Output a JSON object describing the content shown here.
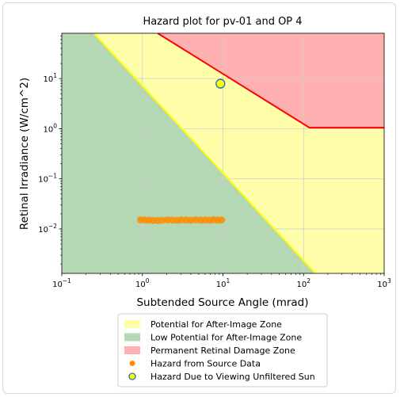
{
  "chart_data": {
    "type": "scatter",
    "title": "Hazard plot for pv-01 and OP 4",
    "xlabel": "Subtended Source Angle (mrad)",
    "ylabel": "Retinal Irradiance (W/cm^2)",
    "xscale": "log",
    "yscale": "log",
    "xlim": [
      0.1,
      1000
    ],
    "ylim": [
      0.0013,
      80
    ],
    "x_ticks": [
      {
        "value": 0.1,
        "base": "10",
        "exp": "−1"
      },
      {
        "value": 1,
        "base": "10",
        "exp": "0"
      },
      {
        "value": 10,
        "base": "10",
        "exp": "1"
      },
      {
        "value": 100,
        "base": "10",
        "exp": "2"
      },
      {
        "value": 1000,
        "base": "10",
        "exp": "3"
      }
    ],
    "y_ticks": [
      {
        "value": 0.01,
        "base": "10",
        "exp": "−2"
      },
      {
        "value": 0.1,
        "base": "10",
        "exp": "−1"
      },
      {
        "value": 1,
        "base": "10",
        "exp": "0"
      },
      {
        "value": 10,
        "base": "10",
        "exp": "1"
      }
    ],
    "grid": true,
    "zones": {
      "after_image_color": "#ffffaa",
      "low_potential_color": "#b3d8b3",
      "permanent_damage_color": "#ffb0b0",
      "low_boundary": {
        "points": [
          [
            0.25,
            80
          ],
          [
            140,
            0.0013
          ]
        ],
        "color": "#ffff00"
      },
      "damage_boundary": {
        "points": [
          [
            1.55,
            80
          ],
          [
            118,
            1.05
          ],
          [
            1000,
            1.05
          ]
        ],
        "color": "#ff0000"
      }
    },
    "series": [
      {
        "name": "Hazard from Source Data",
        "color": "#ff8c00",
        "points": [
          [
            0.95,
            0.0152
          ],
          [
            1.07,
            0.0151
          ],
          [
            1.2,
            0.015
          ],
          [
            1.35,
            0.0148
          ],
          [
            1.55,
            0.0147
          ],
          [
            1.75,
            0.0149
          ],
          [
            2.05,
            0.0151
          ],
          [
            2.35,
            0.015
          ],
          [
            2.7,
            0.0148
          ],
          [
            3.05,
            0.0152
          ],
          [
            3.5,
            0.0151
          ],
          [
            4.0,
            0.0149
          ],
          [
            4.6,
            0.0152
          ],
          [
            5.3,
            0.015
          ],
          [
            6.0,
            0.0151
          ],
          [
            6.8,
            0.0149
          ],
          [
            7.6,
            0.0152
          ],
          [
            8.6,
            0.015
          ],
          [
            9.6,
            0.0151
          ]
        ]
      },
      {
        "name": "Hazard Due to Viewing Unfiltered Sun",
        "color": "#ffff00",
        "edge": "#1f77b4",
        "points": [
          [
            9.3,
            7.9
          ]
        ]
      }
    ],
    "legend": {
      "position": "bottom",
      "entries": [
        {
          "label": "Potential for After-Image Zone",
          "kind": "patch",
          "color": "#ffffaa"
        },
        {
          "label": "Low Potential for After-Image Zone",
          "kind": "patch",
          "color": "#b3d8b3"
        },
        {
          "label": "Permanent Retinal Damage Zone",
          "kind": "patch",
          "color": "#ffb0b0"
        },
        {
          "label": "Hazard from Source Data",
          "kind": "dot",
          "color": "#ff8c00"
        },
        {
          "label": "Hazard Due to Viewing Unfiltered Sun",
          "kind": "ring",
          "color": "#ffff00",
          "edge": "#1f77b4"
        }
      ]
    }
  }
}
